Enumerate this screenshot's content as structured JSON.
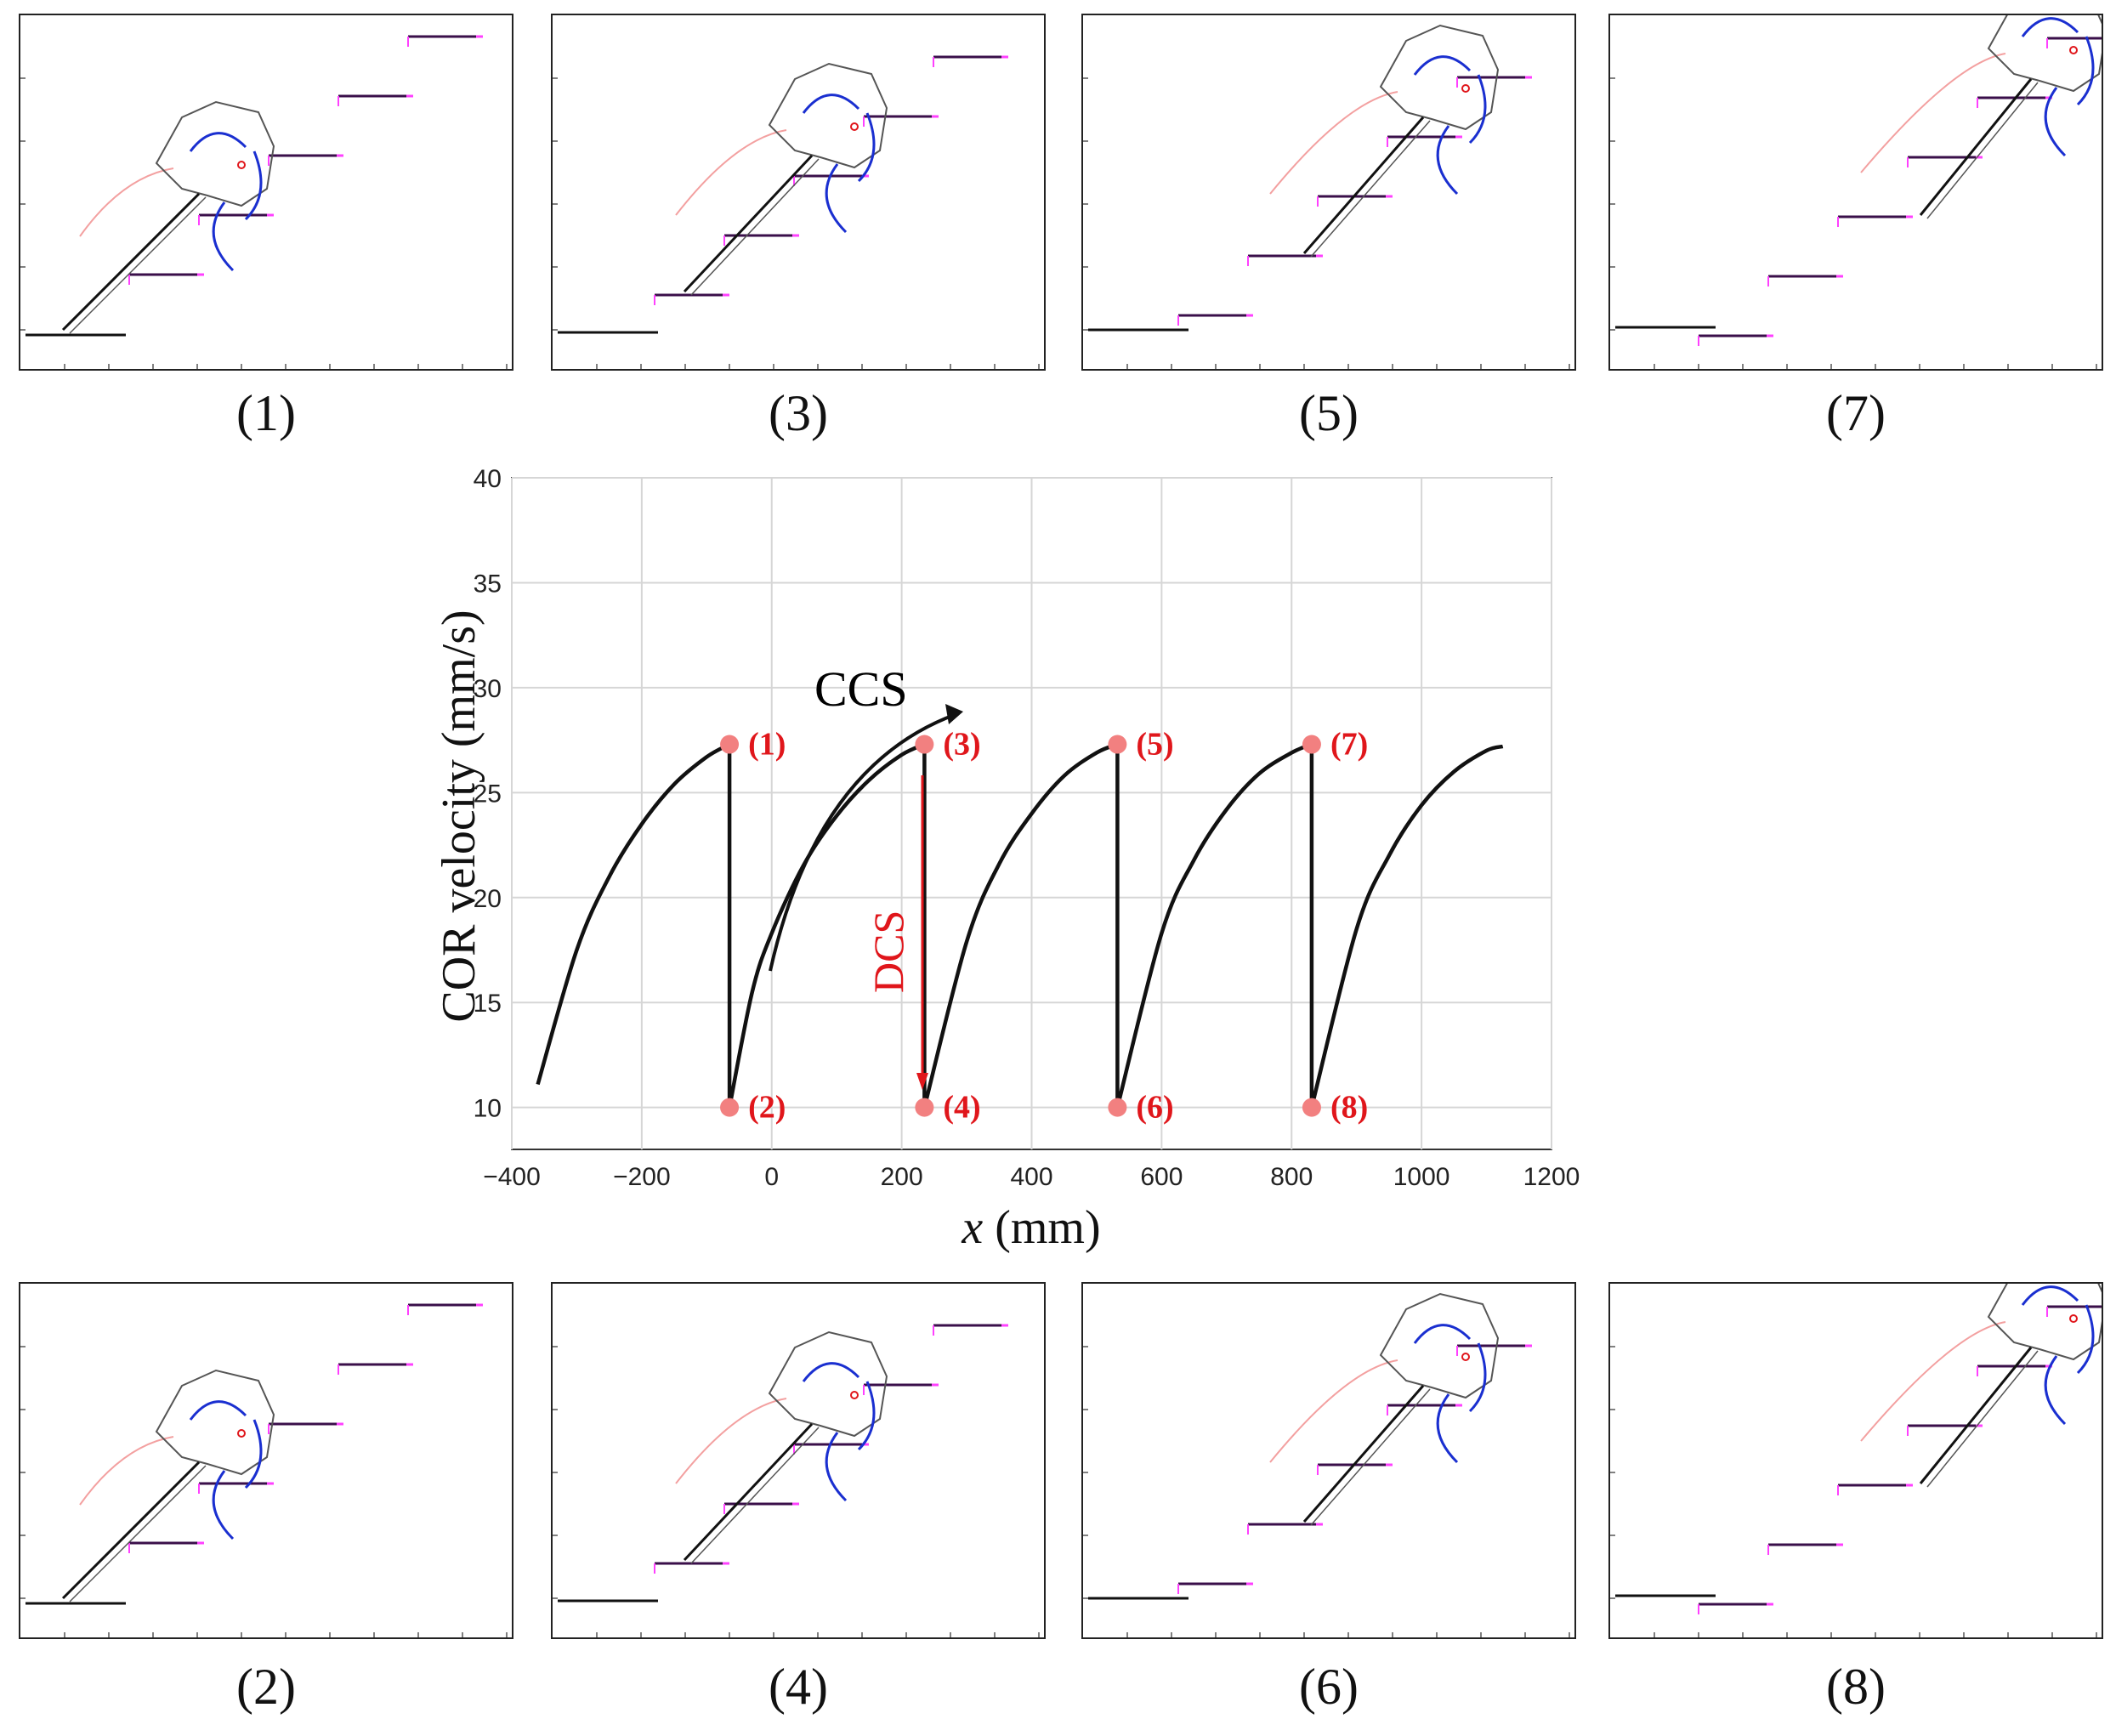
{
  "chart_data": {
    "type": "line",
    "title": "",
    "ylabel": "COR velocity (mm/s)",
    "xlabel_var": "x",
    "xlabel_unit": "(mm)",
    "xlim": [
      -400,
      1200
    ],
    "ylim": [
      8,
      40
    ],
    "xticks": [
      -400,
      -200,
      0,
      200,
      400,
      600,
      800,
      1000,
      1200
    ],
    "xtick_labels": [
      "−400",
      "−200",
      "0",
      "200",
      "400",
      "600",
      "800",
      "1000",
      "1200"
    ],
    "yticks": [
      10,
      15,
      20,
      25,
      30,
      35,
      40
    ],
    "ytick_labels": [
      "10",
      "15",
      "20",
      "25",
      "30",
      "35",
      "40"
    ],
    "grid": true,
    "series": [
      {
        "name": "COR velocity",
        "x": [
          -360,
          -300,
          -250,
          -200,
          -150,
          -100,
          -65,
          -65,
          -30,
          0,
          50,
          100,
          150,
          200,
          235,
          235,
          300,
          350,
          400,
          450,
          500,
          532,
          532,
          600,
          650,
          700,
          750,
          800,
          831,
          831,
          900,
          950,
          1000,
          1050,
          1100,
          1125
        ],
        "y": [
          11.1,
          17.5,
          21.0,
          23.5,
          25.4,
          26.7,
          27.3,
          10.0,
          15.5,
          18.3,
          21.6,
          23.9,
          25.6,
          26.8,
          27.3,
          10.0,
          17.9,
          21.6,
          24.0,
          25.8,
          26.9,
          27.3,
          10.0,
          18.3,
          21.8,
          24.2,
          25.9,
          26.9,
          27.3,
          10.0,
          18.5,
          22.0,
          24.4,
          26.0,
          27.0,
          27.2
        ]
      }
    ],
    "markers": [
      {
        "label": "(1)",
        "x": -65,
        "y": 27.3
      },
      {
        "label": "(2)",
        "x": -65,
        "y": 10.0
      },
      {
        "label": "(3)",
        "x": 235,
        "y": 27.3
      },
      {
        "label": "(4)",
        "x": 235,
        "y": 10.0
      },
      {
        "label": "(5)",
        "x": 532,
        "y": 27.3
      },
      {
        "label": "(6)",
        "x": 532,
        "y": 10.0
      },
      {
        "label": "(7)",
        "x": 831,
        "y": 27.3
      },
      {
        "label": "(8)",
        "x": 831,
        "y": 10.0
      }
    ],
    "annotations": [
      {
        "text": "CCS",
        "color": "#000000"
      },
      {
        "text": "DCS",
        "color": "#e0161b"
      }
    ],
    "colors": {
      "line": "#111111",
      "marker": "#f28080",
      "marker_label": "#e0161b",
      "grid": "#d6d6d6"
    }
  },
  "snapshots": [
    {
      "caption": "(1)",
      "index": 0
    },
    {
      "caption": "(3)",
      "index": 1
    },
    {
      "caption": "(5)",
      "index": 2
    },
    {
      "caption": "(7)",
      "index": 3
    },
    {
      "caption": "(2)",
      "index": 0
    },
    {
      "caption": "(4)",
      "index": 1
    },
    {
      "caption": "(6)",
      "index": 2
    },
    {
      "caption": "(8)",
      "index": 3
    }
  ]
}
